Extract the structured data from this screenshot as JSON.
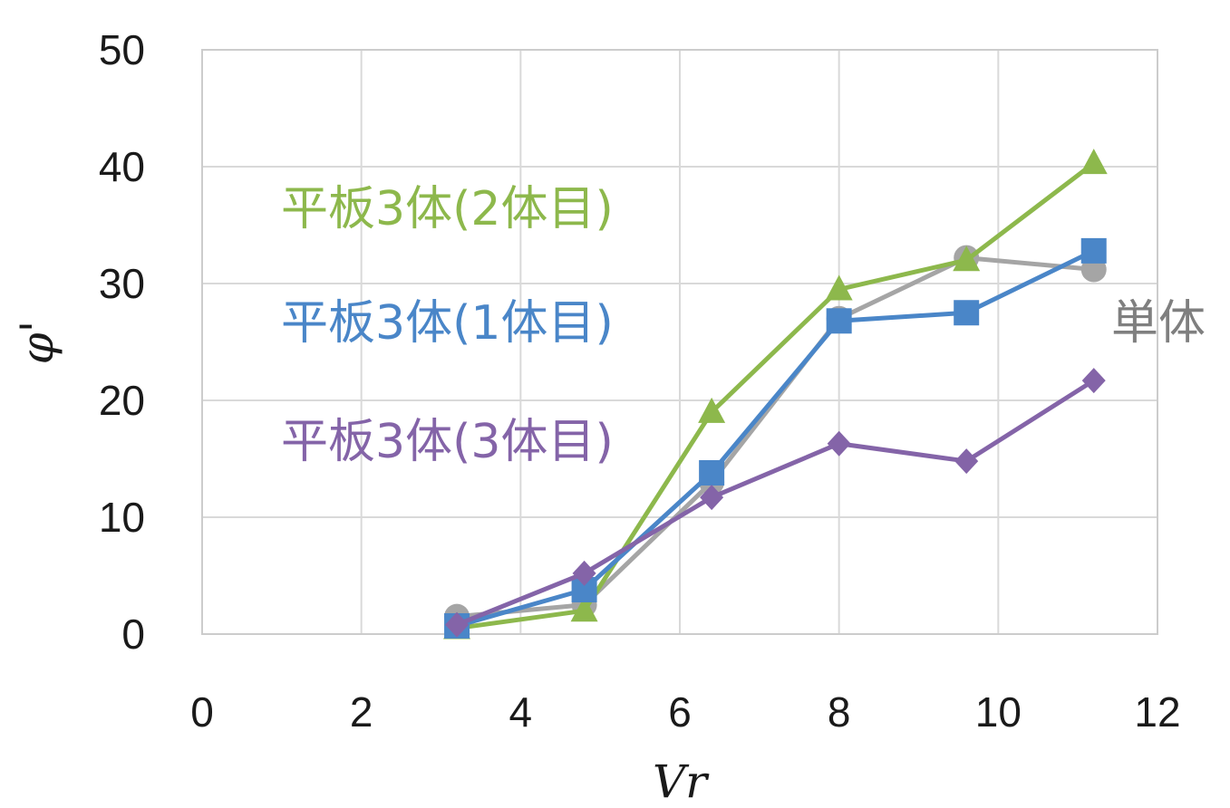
{
  "chart_data": {
    "type": "line",
    "xlabel": "Vr",
    "ylabel": "φ'",
    "xlim": [
      0,
      12
    ],
    "ylim": [
      0,
      50
    ],
    "xticks": [
      "0",
      "2",
      "4",
      "6",
      "8",
      "10",
      "12"
    ],
    "yticks": [
      "0",
      "10",
      "20",
      "30",
      "40",
      "50"
    ],
    "grid": true,
    "legend": "inline labels",
    "series": [
      {
        "name": "単体",
        "color": "#a5a5a5",
        "marker": "circle",
        "x": [
          3.2,
          4.8,
          6.4,
          8.0,
          9.6,
          11.2
        ],
        "y": [
          1.5,
          2.5,
          13.0,
          27.0,
          32.2,
          31.2
        ]
      },
      {
        "name": "平板3体(2体目)",
        "color": "#8db84c",
        "marker": "triangle",
        "x": [
          3.2,
          4.8,
          6.4,
          8.0,
          9.6,
          11.2
        ],
        "y": [
          0.5,
          2.0,
          19.0,
          29.5,
          32.0,
          40.3
        ]
      },
      {
        "name": "平板3体(1体目)",
        "color": "#4a86c8",
        "marker": "square",
        "x": [
          3.2,
          4.8,
          6.4,
          8.0,
          9.6,
          11.2
        ],
        "y": [
          0.7,
          3.8,
          13.8,
          26.8,
          27.5,
          32.8
        ]
      },
      {
        "name": "平板3体(3体目)",
        "color": "#8464a8",
        "marker": "diamond",
        "x": [
          3.2,
          4.8,
          6.4,
          8.0,
          9.6,
          11.2
        ],
        "y": [
          0.8,
          5.2,
          11.7,
          16.3,
          14.8,
          21.7
        ]
      }
    ]
  }
}
